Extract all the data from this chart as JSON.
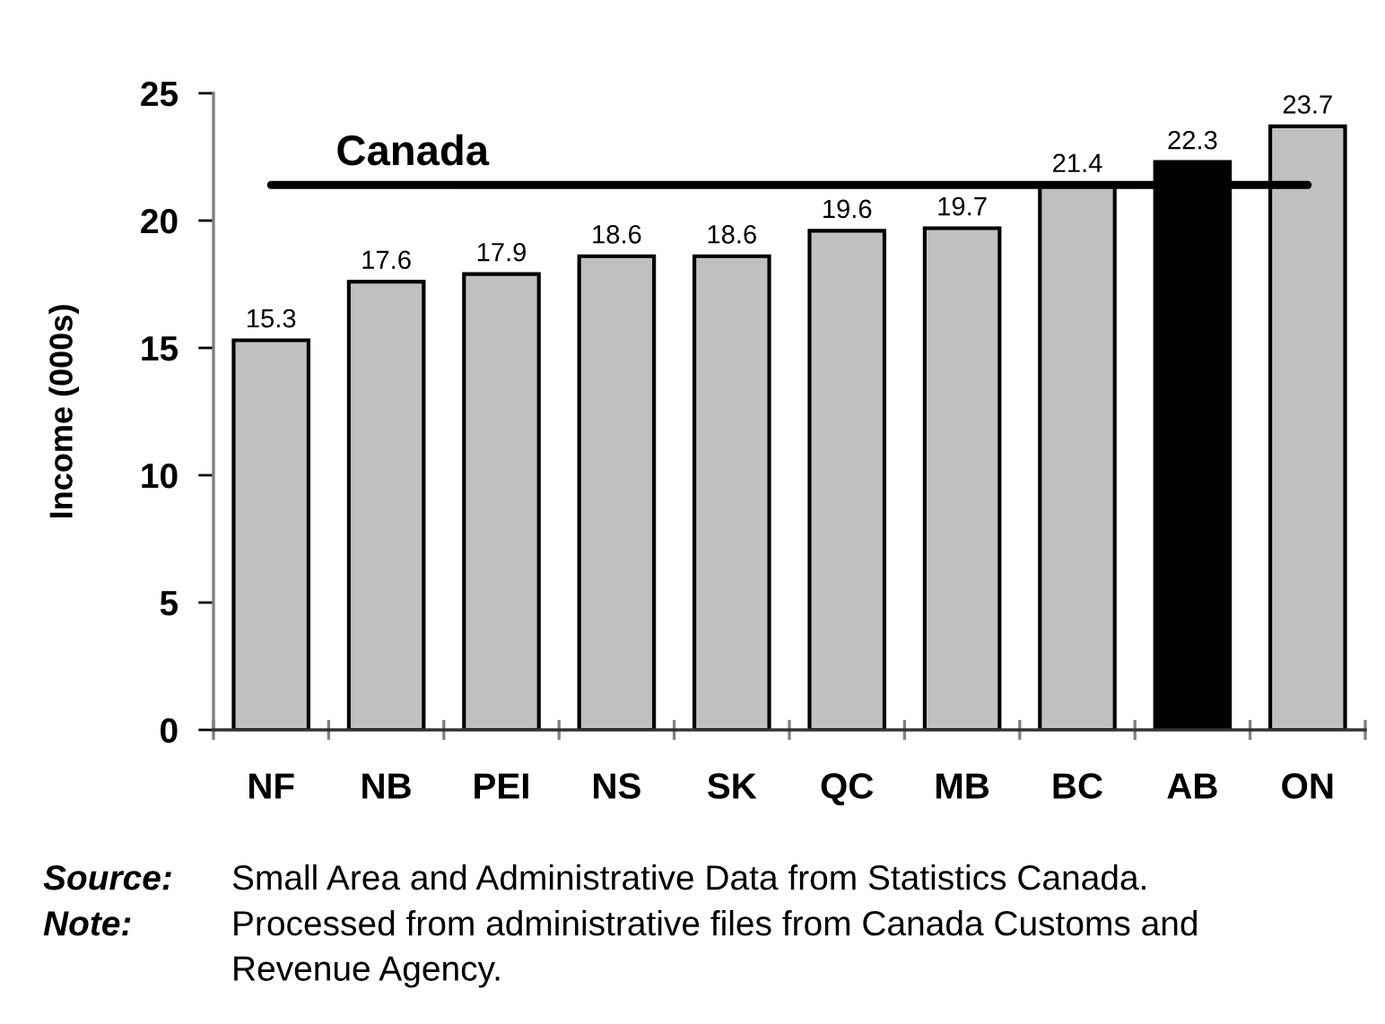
{
  "chart_data": {
    "type": "bar",
    "categories": [
      "NF",
      "NB",
      "PEI",
      "NS",
      "SK",
      "QC",
      "MB",
      "BC",
      "AB",
      "ON"
    ],
    "values": [
      15.3,
      17.6,
      17.9,
      18.6,
      18.6,
      19.6,
      19.7,
      21.4,
      22.3,
      23.7
    ],
    "colors": [
      "#c0c0c0",
      "#c0c0c0",
      "#c0c0c0",
      "#c0c0c0",
      "#c0c0c0",
      "#c0c0c0",
      "#c0c0c0",
      "#c0c0c0",
      "#000000",
      "#c0c0c0"
    ],
    "ylabel": "Income (000s)",
    "ylim": [
      0,
      25
    ],
    "yticks": [
      0,
      5,
      10,
      15,
      20,
      25
    ],
    "data_labels": true,
    "ref_lines": [
      {
        "axis": "y",
        "value": 21.4,
        "label": "Canada",
        "color": "#000000"
      }
    ],
    "annotations": [
      "Source: Small Area and Administrative Data from Statistics Canada.",
      "Note: Processed from administrative files from Canada Customs and Revenue Agency."
    ]
  }
}
